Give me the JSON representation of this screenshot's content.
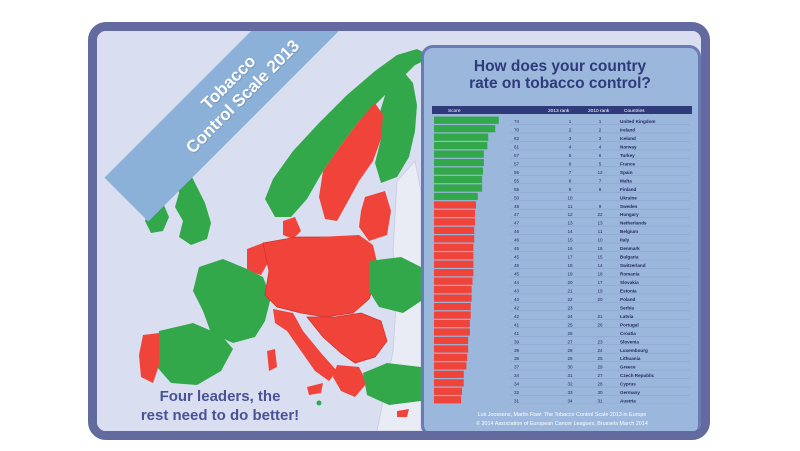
{
  "ribbon": {
    "line1": "Tobacco",
    "line2": "Control Scale 2013"
  },
  "tagline": {
    "line1": "Four leaders, the",
    "line2": "rest need to do better!"
  },
  "panel": {
    "title_line1": "How does your country",
    "title_line2": "rate on tobacco control?",
    "credit_line1": "Luk Joossens, Martin Raw: The Tobacco Control Scale 2013 in Europe",
    "credit_line2": "© 2014 Association of European Cancer Leagues, Brussels March 2014"
  },
  "colors": {
    "leader_green": "#32a84a",
    "rest_red": "#f0433a",
    "frame": "#626aa0",
    "panel_bg": "#9bb7dc",
    "sea": "#d9dff1"
  },
  "chart_data": {
    "type": "table",
    "columns": [
      "Score",
      "2013 rank",
      "2010 rank",
      "Countries"
    ],
    "rows": [
      {
        "country": "United Kingdom",
        "score": 74,
        "rank_2013": 1,
        "rank_2010": 1,
        "group": "green"
      },
      {
        "country": "Ireland",
        "score": 70,
        "rank_2013": 2,
        "rank_2010": 2,
        "group": "green"
      },
      {
        "country": "Iceland",
        "score": 62,
        "rank_2013": 3,
        "rank_2010": 3,
        "group": "green"
      },
      {
        "country": "Norway",
        "score": 61,
        "rank_2013": 4,
        "rank_2010": 4,
        "group": "green"
      },
      {
        "country": "Turkey",
        "score": 57,
        "rank_2013": 5,
        "rank_2010": 6,
        "group": "green"
      },
      {
        "country": "France",
        "score": 57,
        "rank_2013": 6,
        "rank_2010": 5,
        "group": "green"
      },
      {
        "country": "Spain",
        "score": 56,
        "rank_2013": 7,
        "rank_2010": 12,
        "group": "green"
      },
      {
        "country": "Malta",
        "score": 55,
        "rank_2013": 8,
        "rank_2010": 7,
        "group": "green"
      },
      {
        "country": "Finland",
        "score": 55,
        "rank_2013": 9,
        "rank_2010": 8,
        "group": "green"
      },
      {
        "country": "Ukraine",
        "score": 50,
        "rank_2013": 10,
        "rank_2010": "",
        "group": "green"
      },
      {
        "country": "Sweden",
        "score": 48,
        "rank_2013": 11,
        "rank_2010": 9,
        "group": "red"
      },
      {
        "country": "Hungary",
        "score": 47,
        "rank_2013": 12,
        "rank_2010": 22,
        "group": "red"
      },
      {
        "country": "Netherlands",
        "score": 47,
        "rank_2013": 13,
        "rank_2010": 13,
        "group": "red"
      },
      {
        "country": "Belgium",
        "score": 46,
        "rank_2013": 14,
        "rank_2010": 11,
        "group": "red"
      },
      {
        "country": "Italy",
        "score": 46,
        "rank_2013": 15,
        "rank_2010": 10,
        "group": "red"
      },
      {
        "country": "Denmark",
        "score": 45,
        "rank_2013": 16,
        "rank_2010": 16,
        "group": "red"
      },
      {
        "country": "Bulgaria",
        "score": 45,
        "rank_2013": 17,
        "rank_2010": 15,
        "group": "red"
      },
      {
        "country": "Switzerland",
        "score": 45,
        "rank_2013": 18,
        "rank_2010": 14,
        "group": "red"
      },
      {
        "country": "Romania",
        "score": 45,
        "rank_2013": 19,
        "rank_2010": 18,
        "group": "red"
      },
      {
        "country": "Slovakia",
        "score": 44,
        "rank_2013": 20,
        "rank_2010": 17,
        "group": "red"
      },
      {
        "country": "Estonia",
        "score": 43,
        "rank_2013": 21,
        "rank_2010": 19,
        "group": "red"
      },
      {
        "country": "Poland",
        "score": 43,
        "rank_2013": 22,
        "rank_2010": 20,
        "group": "red"
      },
      {
        "country": "Serbia",
        "score": 42,
        "rank_2013": 23,
        "rank_2010": "",
        "group": "red"
      },
      {
        "country": "Latvia",
        "score": 42,
        "rank_2013": 24,
        "rank_2010": 21,
        "group": "red"
      },
      {
        "country": "Portugal",
        "score": 41,
        "rank_2013": 25,
        "rank_2010": 26,
        "group": "red"
      },
      {
        "country": "Croatia",
        "score": 41,
        "rank_2013": 26,
        "rank_2010": "",
        "group": "red"
      },
      {
        "country": "Slovenia",
        "score": 39,
        "rank_2013": 27,
        "rank_2010": 23,
        "group": "red"
      },
      {
        "country": "Luxembourg",
        "score": 39,
        "rank_2013": 28,
        "rank_2010": 24,
        "group": "red"
      },
      {
        "country": "Lithuania",
        "score": 38,
        "rank_2013": 29,
        "rank_2010": 25,
        "group": "red"
      },
      {
        "country": "Greece",
        "score": 37,
        "rank_2013": 30,
        "rank_2010": 29,
        "group": "red"
      },
      {
        "country": "Czech Republic",
        "score": 34,
        "rank_2013": 31,
        "rank_2010": 27,
        "group": "red"
      },
      {
        "country": "Cyprus",
        "score": 34,
        "rank_2013": 32,
        "rank_2010": 28,
        "group": "red"
      },
      {
        "country": "Germany",
        "score": 32,
        "rank_2013": 33,
        "rank_2010": 30,
        "group": "red"
      },
      {
        "country": "Austria",
        "score": 31,
        "rank_2013": 34,
        "rank_2010": 31,
        "group": "red"
      }
    ],
    "xlim": [
      0,
      80
    ]
  }
}
